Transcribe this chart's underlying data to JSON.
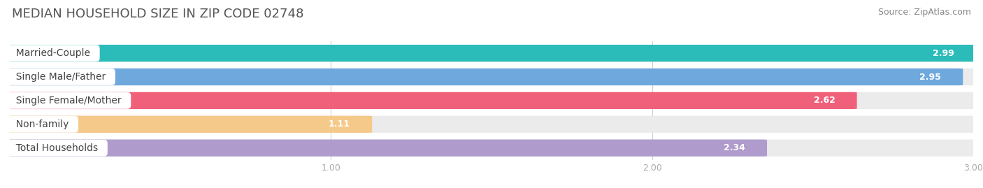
{
  "title": "MEDIAN HOUSEHOLD SIZE IN ZIP CODE 02748",
  "source": "Source: ZipAtlas.com",
  "categories": [
    "Married-Couple",
    "Single Male/Father",
    "Single Female/Mother",
    "Non-family",
    "Total Households"
  ],
  "values": [
    2.99,
    2.95,
    2.62,
    1.11,
    2.34
  ],
  "bar_colors": [
    "#2bbcba",
    "#6ea8dc",
    "#f0607a",
    "#f5c98a",
    "#b09ccc"
  ],
  "bar_bg_color": "#ebebeb",
  "xlim_start": 0,
  "xlim_end": 3.0,
  "xticks": [
    1.0,
    2.0,
    3.0
  ],
  "value_label_color": "#ffffff",
  "background_color": "#ffffff",
  "title_fontsize": 13,
  "source_fontsize": 9,
  "bar_label_fontsize": 10,
  "value_fontsize": 9,
  "tick_fontsize": 9,
  "bar_height": 0.68,
  "bar_gap": 0.32
}
